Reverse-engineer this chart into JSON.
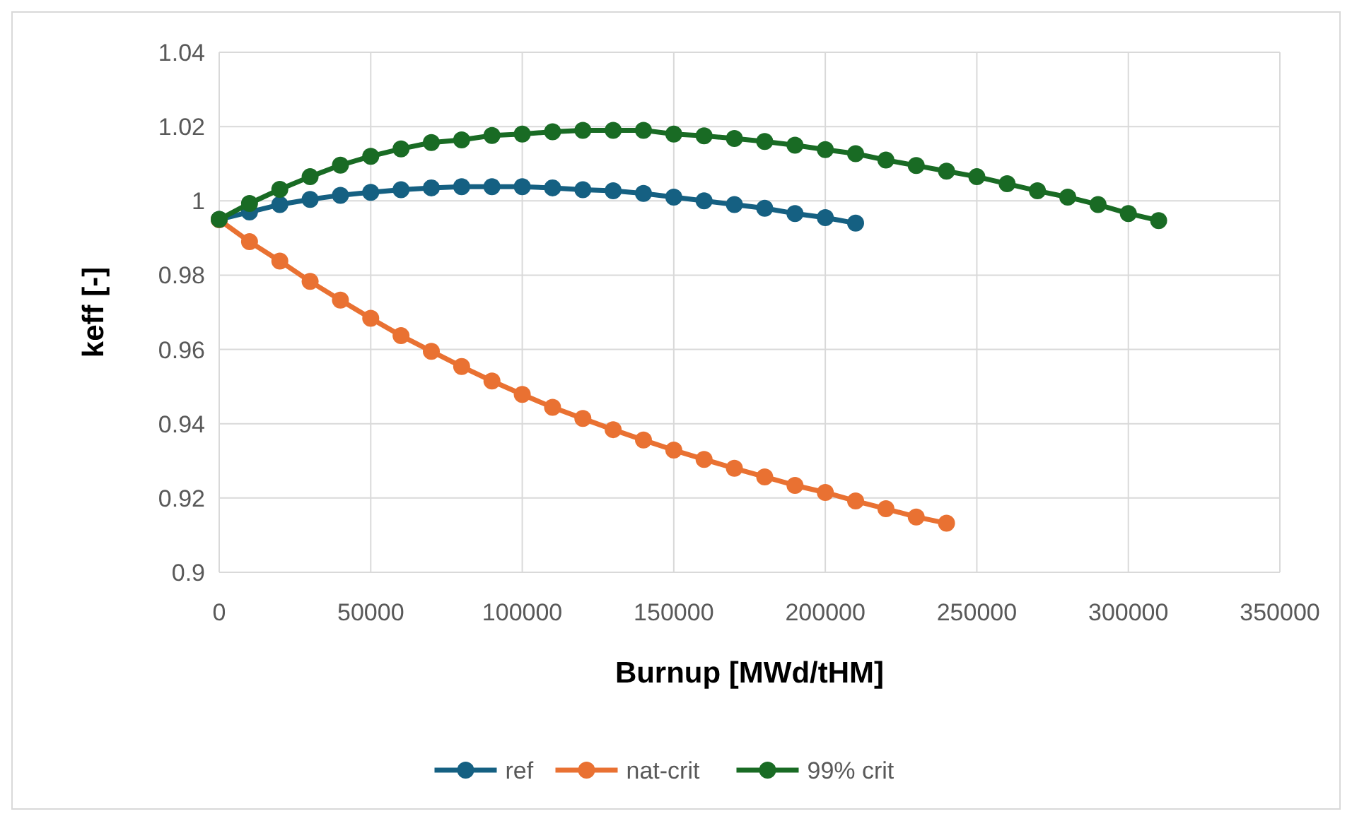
{
  "chart_data": {
    "type": "line",
    "xlabel": "Burnup [MWd/tHM]",
    "ylabel": "keff [-]",
    "x": [
      0,
      10000,
      20000,
      30000,
      40000,
      50000,
      60000,
      70000,
      80000,
      90000,
      100000,
      110000,
      120000,
      130000,
      140000,
      150000,
      160000,
      170000,
      180000,
      190000,
      200000,
      210000,
      220000,
      230000,
      240000,
      250000,
      260000,
      270000,
      280000,
      290000,
      300000,
      310000
    ],
    "series": [
      {
        "name": "ref",
        "color": "#156082",
        "values": [
          0.995,
          0.997,
          0.999,
          1.0004,
          1.0015,
          1.0023,
          1.003,
          1.0035,
          1.0038,
          1.0038,
          1.0038,
          1.0035,
          1.003,
          1.0027,
          1.002,
          1.001,
          1.0,
          0.999,
          0.998,
          0.9966,
          0.9955,
          0.994,
          null,
          null,
          null,
          null,
          null,
          null,
          null,
          null,
          null,
          null
        ]
      },
      {
        "name": "nat-crit",
        "color": "#e97132",
        "values": [
          0.9949,
          0.989,
          0.9838,
          0.9783,
          0.9733,
          0.9684,
          0.9637,
          0.9595,
          0.9554,
          0.9515,
          0.9479,
          0.9444,
          0.9414,
          0.9384,
          0.9356,
          0.9329,
          0.9304,
          0.928,
          0.9257,
          0.9234,
          0.9215,
          0.9192,
          0.9171,
          0.9149,
          0.9132,
          null,
          null,
          null,
          null,
          null,
          null,
          null
        ]
      },
      {
        "name": "99% crit",
        "color": "#196b24",
        "values": [
          0.995,
          0.9993,
          1.0031,
          1.0065,
          1.0096,
          1.012,
          1.014,
          1.0157,
          1.0164,
          1.0176,
          1.018,
          1.0186,
          1.019,
          1.019,
          1.019,
          1.018,
          1.0175,
          1.0168,
          1.016,
          1.015,
          1.0138,
          1.0127,
          1.011,
          1.0095,
          1.008,
          1.0065,
          1.0046,
          1.0027,
          1.001,
          0.999,
          0.9966,
          0.9947
        ]
      }
    ],
    "xlim": [
      0,
      350000
    ],
    "xticks": [
      0,
      50000,
      100000,
      150000,
      200000,
      250000,
      300000,
      350000
    ],
    "ylim": [
      0.9,
      1.04
    ],
    "yticks": [
      {
        "value": 0.9,
        "label": "0.9"
      },
      {
        "value": 0.92,
        "label": "0.92"
      },
      {
        "value": 0.94,
        "label": "0.94"
      },
      {
        "value": 0.96,
        "label": "0.96"
      },
      {
        "value": 0.98,
        "label": "0.98"
      },
      {
        "value": 1,
        "label": "1"
      },
      {
        "value": 1.02,
        "label": "1.02"
      },
      {
        "value": 1.04,
        "label": "1.04"
      }
    ],
    "grid": true,
    "legend": "bottom",
    "marker": "circle",
    "line_style": "solid"
  }
}
